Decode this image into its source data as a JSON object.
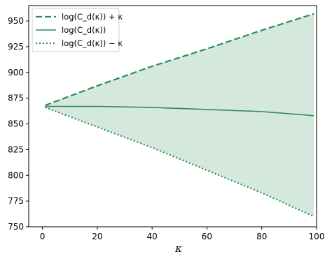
{
  "chart_data": {
    "type": "line",
    "xlabel": "κ",
    "ylabel": "",
    "title": "",
    "xlim": [
      -5,
      100
    ],
    "ylim": [
      750,
      965
    ],
    "x_ticks": [
      0,
      20,
      40,
      60,
      80,
      100
    ],
    "x_tick_labels": [
      "0",
      "20",
      "40",
      "60",
      "80",
      "100"
    ],
    "y_ticks": [
      750,
      775,
      800,
      825,
      850,
      875,
      900,
      925,
      950
    ],
    "y_tick_labels": [
      "750",
      "775",
      "800",
      "825",
      "850",
      "875",
      "900",
      "925",
      "950"
    ],
    "grid": false,
    "legend_position": "top-left",
    "fill_between": {
      "upper": "log(C_d(κ)) + κ",
      "lower": "log(C_d(κ)) − κ",
      "color": "#2e8b57",
      "opacity": 0.2
    },
    "series": [
      {
        "name": "log(C_d(κ)) + κ",
        "style": "dashed",
        "color": "#2e8b57",
        "x": [
          1,
          20,
          40,
          60,
          80,
          99
        ],
        "y": [
          868,
          887,
          906,
          923,
          941,
          957
        ]
      },
      {
        "name": "log(C_d(κ))",
        "style": "solid",
        "color": "#2e8b57",
        "x": [
          1,
          20,
          40,
          60,
          80,
          99
        ],
        "y": [
          867,
          867,
          866,
          864,
          862,
          858
        ]
      },
      {
        "name": "log(C_d(κ)) − κ",
        "style": "dotted",
        "color": "#2e8b57",
        "x": [
          1,
          20,
          40,
          60,
          80,
          99
        ],
        "y": [
          866,
          847,
          827,
          805,
          783,
          760
        ]
      }
    ]
  }
}
